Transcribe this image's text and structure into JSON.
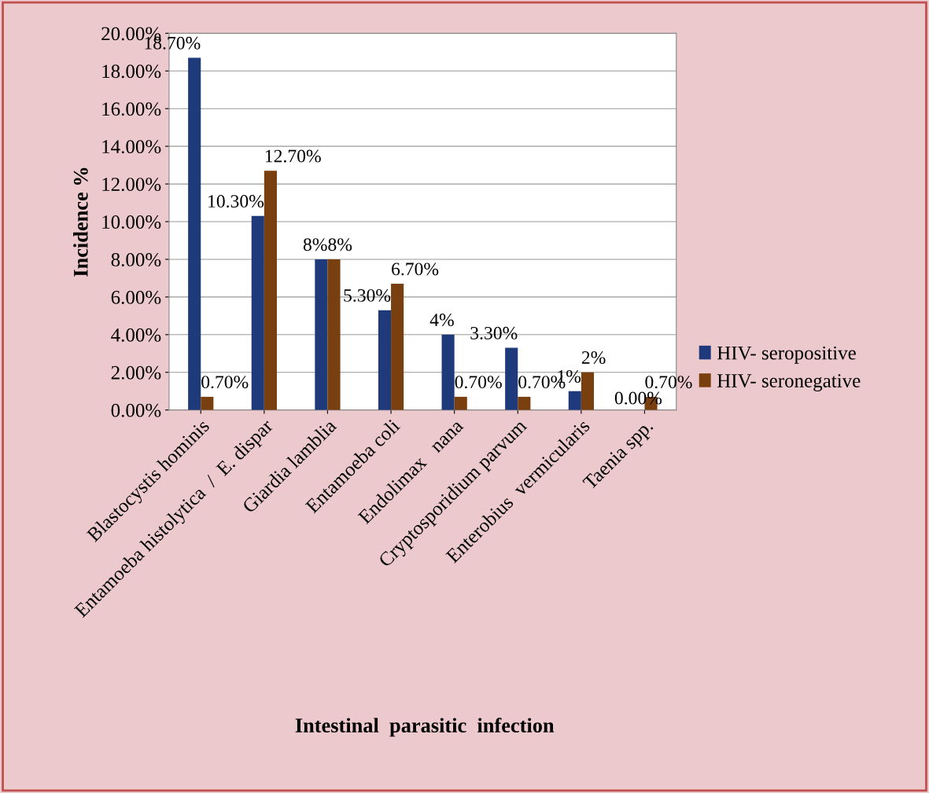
{
  "chart_data": {
    "type": "bar",
    "xlabel": "Intestinal  parasitic  infection",
    "ylabel": "Incidence %",
    "categories": [
      "Blastocystis hominis",
      "Entamoeba histolytica  /  E. dispar",
      "Giardia lamblia",
      "Entamoeba coli",
      "Endolimax   nana",
      "Cryptosporidium parvum",
      "Enterobius  vermicularis",
      "Taenia spp."
    ],
    "series": [
      {
        "name": "HIV- seropositive",
        "color": "#1f3a7a",
        "values": [
          18.7,
          10.3,
          8,
          5.3,
          4,
          3.3,
          1,
          0.0
        ],
        "value_labels": [
          "18.70%",
          "10.30%",
          "8%",
          "5.30%",
          "4%",
          "3.30%",
          "1%",
          "0.00%"
        ]
      },
      {
        "name": "HIV- seronegative",
        "color": "#7a3f0f",
        "values": [
          0.7,
          12.7,
          8,
          6.7,
          0.7,
          0.7,
          2,
          0.7
        ],
        "value_labels": [
          "0.70%",
          "12.70%",
          "8%",
          "6.70%",
          "0.70%",
          "0.70%",
          "2%",
          "0.70%"
        ]
      }
    ],
    "ylim": [
      0,
      20
    ],
    "yticks": [
      {
        "value": 0,
        "label": "0.00%"
      },
      {
        "value": 2,
        "label": "2.00%"
      },
      {
        "value": 4,
        "label": "4.00%"
      },
      {
        "value": 6,
        "label": "6.00%"
      },
      {
        "value": 8,
        "label": "8.00%"
      },
      {
        "value": 10,
        "label": "10.00%"
      },
      {
        "value": 12,
        "label": "12.00%"
      },
      {
        "value": 14,
        "label": "14.00%"
      },
      {
        "value": 16,
        "label": "16.00%"
      },
      {
        "value": 18,
        "label": "18.00%"
      },
      {
        "value": 20,
        "label": "20.00%"
      }
    ],
    "grid": "y",
    "legend": "right"
  }
}
